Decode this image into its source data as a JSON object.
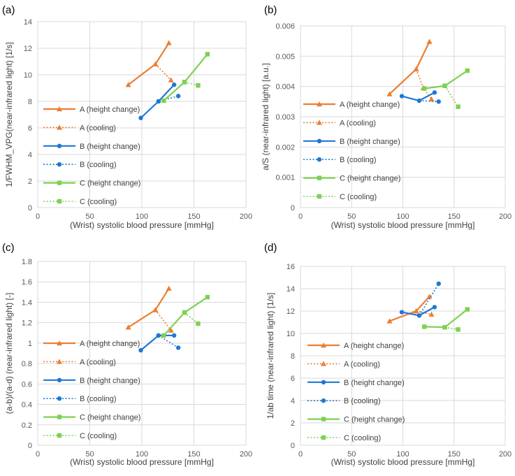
{
  "chart_data": [
    {
      "type": "line",
      "panel_label": "(a)",
      "xlabel": "(Wrist) systolic blood pressure [mmHg]",
      "ylabel": "1/FWHM_VPG(near-infrared light) [1/s]",
      "xlim": [
        0,
        200
      ],
      "ylim": [
        0,
        14
      ],
      "xticks": [
        0,
        50,
        100,
        150,
        200
      ],
      "yticks": [
        0,
        2,
        4,
        6,
        8,
        10,
        12,
        14
      ],
      "ytick_labels": [
        "0",
        "2",
        "4",
        "6",
        "8",
        "10",
        "12",
        "14"
      ],
      "grid": "x-and-y",
      "series": [
        {
          "name": "A (height change)",
          "color": "#ED7D31",
          "dash": "solid",
          "marker": "triangle",
          "x": [
            87,
            113,
            126
          ],
          "y": [
            9.25,
            10.8,
            12.4
          ]
        },
        {
          "name": "A (cooling)",
          "color": "#ED7D31",
          "dash": "dotted",
          "marker": "triangle",
          "x": [
            113,
            128
          ],
          "y": [
            10.8,
            9.6
          ]
        },
        {
          "name": "B (height change)",
          "color": "#1F77D4",
          "dash": "solid",
          "marker": "circle",
          "x": [
            99,
            116,
            131
          ],
          "y": [
            6.75,
            8.0,
            9.25
          ]
        },
        {
          "name": "B (cooling)",
          "color": "#1F77D4",
          "dash": "dotted",
          "marker": "circle",
          "x": [
            116,
            135
          ],
          "y": [
            8.0,
            8.4
          ]
        },
        {
          "name": "C (height change)",
          "color": "#7DD150",
          "dash": "solid",
          "marker": "square",
          "x": [
            121,
            141,
            163
          ],
          "y": [
            8.05,
            9.45,
            11.55
          ]
        },
        {
          "name": "C (cooling)",
          "color": "#7DD150",
          "dash": "dotted",
          "marker": "square",
          "x": [
            141,
            154
          ],
          "y": [
            9.45,
            9.2
          ]
        }
      ]
    },
    {
      "type": "line",
      "panel_label": "(b)",
      "xlabel": "(Wrist) systolic blood pressure [mmHg]",
      "ylabel": "a/S (near-infrared light) [a.u.]",
      "xlim": [
        0,
        200
      ],
      "ylim": [
        0,
        0.006
      ],
      "xticks": [
        0,
        50,
        100,
        150,
        200
      ],
      "yticks": [
        0,
        0.001,
        0.002,
        0.003,
        0.004,
        0.005,
        0.006
      ],
      "ytick_labels": [
        "0",
        "0.001",
        "0.002",
        "0.003",
        "0.004",
        "0.005",
        "0.006"
      ],
      "grid": "x-and-y",
      "series": [
        {
          "name": "A (height change)",
          "color": "#ED7D31",
          "dash": "solid",
          "marker": "triangle",
          "x": [
            87,
            113,
            126
          ],
          "y": [
            0.00375,
            0.00457,
            0.00548
          ]
        },
        {
          "name": "A (cooling)",
          "color": "#ED7D31",
          "dash": "dotted",
          "marker": "triangle",
          "x": [
            113,
            120,
            128
          ],
          "y": [
            0.00457,
            0.00395,
            0.00358
          ]
        },
        {
          "name": "B (height change)",
          "color": "#1F77D4",
          "dash": "solid",
          "marker": "circle",
          "x": [
            99,
            116,
            131
          ],
          "y": [
            0.00368,
            0.00353,
            0.0038
          ]
        },
        {
          "name": "B (cooling)",
          "color": "#1F77D4",
          "dash": "dotted",
          "marker": "circle",
          "x": [
            116,
            135
          ],
          "y": [
            0.00353,
            0.0035
          ]
        },
        {
          "name": "C (height change)",
          "color": "#7DD150",
          "dash": "solid",
          "marker": "square",
          "x": [
            121,
            141,
            163
          ],
          "y": [
            0.00393,
            0.00402,
            0.00452
          ]
        },
        {
          "name": "C (cooling)",
          "color": "#7DD150",
          "dash": "dotted",
          "marker": "square",
          "x": [
            141,
            154
          ],
          "y": [
            0.00402,
            0.00333
          ]
        }
      ]
    },
    {
      "type": "line",
      "panel_label": "(c)",
      "xlabel": "(Wrist) systolic blood pressure [mmHg]",
      "ylabel": "(a-b)/(a-d) (near-infrared light) [-]",
      "xlim": [
        0,
        200
      ],
      "ylim": [
        0,
        1.8
      ],
      "xticks": [
        0,
        50,
        100,
        150,
        200
      ],
      "yticks": [
        0,
        0.2,
        0.4,
        0.6,
        0.8,
        1.0,
        1.2,
        1.4,
        1.6,
        1.8
      ],
      "ytick_labels": [
        "0",
        "0.2",
        "0.4",
        "0.6",
        "0.8",
        "1",
        "1.2",
        "1.4",
        "1.6",
        "1.8"
      ],
      "grid": "x-and-y",
      "series": [
        {
          "name": "A (height change)",
          "color": "#ED7D31",
          "dash": "solid",
          "marker": "triangle",
          "x": [
            87,
            113,
            126
          ],
          "y": [
            1.155,
            1.325,
            1.535
          ]
        },
        {
          "name": "A (cooling)",
          "color": "#ED7D31",
          "dash": "dotted",
          "marker": "triangle",
          "x": [
            113,
            128
          ],
          "y": [
            1.325,
            1.125
          ]
        },
        {
          "name": "B (height change)",
          "color": "#1F77D4",
          "dash": "solid",
          "marker": "circle",
          "x": [
            99,
            116,
            131
          ],
          "y": [
            0.93,
            1.075,
            1.075
          ]
        },
        {
          "name": "B (cooling)",
          "color": "#1F77D4",
          "dash": "dotted",
          "marker": "circle",
          "x": [
            116,
            135
          ],
          "y": [
            1.075,
            0.955
          ]
        },
        {
          "name": "C (height change)",
          "color": "#7DD150",
          "dash": "solid",
          "marker": "square",
          "x": [
            121,
            141,
            163
          ],
          "y": [
            1.075,
            1.3,
            1.45
          ]
        },
        {
          "name": "C (cooling)",
          "color": "#7DD150",
          "dash": "dotted",
          "marker": "square",
          "x": [
            141,
            154
          ],
          "y": [
            1.3,
            1.19
          ]
        }
      ]
    },
    {
      "type": "line",
      "panel_label": "(d)",
      "xlabel": "(Wrist) systolic blood pressure [mmHg]",
      "ylabel": "1/ab time (near-infrared light) [1/s]",
      "xlim": [
        0,
        200
      ],
      "ylim": [
        0,
        16
      ],
      "xticks": [
        0,
        50,
        100,
        150,
        200
      ],
      "yticks": [
        0,
        2,
        4,
        6,
        8,
        10,
        12,
        14,
        16
      ],
      "ytick_labels": [
        "0",
        "2",
        "4",
        "6",
        "8",
        "10",
        "12",
        "14",
        "16"
      ],
      "grid": "x-and-y",
      "series": [
        {
          "name": "A (height change)",
          "color": "#ED7D31",
          "dash": "solid",
          "marker": "triangle",
          "x": [
            87,
            113,
            126
          ],
          "y": [
            11.1,
            12.0,
            13.3
          ]
        },
        {
          "name": "A (cooling)",
          "color": "#ED7D31",
          "dash": "dotted",
          "marker": "triangle",
          "x": [
            113,
            128
          ],
          "y": [
            12.0,
            11.7
          ]
        },
        {
          "name": "B (height change)",
          "color": "#1F77D4",
          "dash": "solid",
          "marker": "circle",
          "x": [
            99,
            116,
            131
          ],
          "y": [
            11.9,
            11.6,
            12.35
          ]
        },
        {
          "name": "B (cooling)",
          "color": "#1F77D4",
          "dash": "dotted",
          "marker": "circle",
          "x": [
            116,
            135
          ],
          "y": [
            11.6,
            14.45
          ]
        },
        {
          "name": "C (height change)",
          "color": "#7DD150",
          "dash": "solid",
          "marker": "square",
          "x": [
            121,
            141,
            163
          ],
          "y": [
            10.6,
            10.55,
            12.15
          ]
        },
        {
          "name": "C (cooling)",
          "color": "#7DD150",
          "dash": "dotted",
          "marker": "square",
          "x": [
            141,
            154
          ],
          "y": [
            10.55,
            10.35
          ]
        }
      ]
    }
  ]
}
